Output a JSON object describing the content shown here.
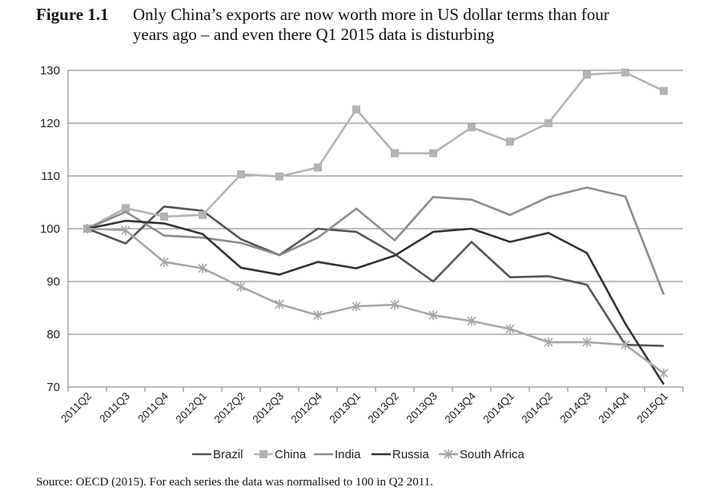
{
  "figure": {
    "number": "Figure 1.1",
    "title_line1": "Only China’s exports are now worth more in US dollar terms than four",
    "title_line2": "years ago – and even there Q1 2015 data is disturbing"
  },
  "source": "Source: OECD (2015). For each series the data was normalised to 100 in Q2 2011.",
  "chart_data": {
    "type": "line",
    "title": "",
    "xlabel": "",
    "ylabel": "",
    "ylim": [
      70,
      130
    ],
    "yticks": [
      70,
      80,
      90,
      100,
      110,
      120,
      130
    ],
    "grid": "horizontal",
    "legend_position": "bottom",
    "categories": [
      "2011Q2",
      "2011Q3",
      "2011Q4",
      "2012Q1",
      "2012Q2",
      "2012Q3",
      "2012Q4",
      "2013Q1",
      "2013Q2",
      "2013Q3",
      "2013Q4",
      "2014Q1",
      "2014Q2",
      "2014Q3",
      "2014Q4",
      "2015Q1"
    ],
    "series": [
      {
        "name": "Brazil",
        "color": "#555555",
        "marker": "none",
        "values": [
          100,
          97.2,
          104.2,
          103.4,
          98,
          95,
          100,
          99.4,
          95.2,
          90,
          97.5,
          90.8,
          91,
          89.4,
          78,
          77.8
        ]
      },
      {
        "name": "China",
        "color": "#b3b3b3",
        "marker": "square",
        "values": [
          100,
          103.9,
          102.3,
          102.6,
          110.3,
          109.9,
          111.6,
          122.6,
          114.3,
          114.3,
          119.2,
          116.5,
          120,
          129.2,
          129.6,
          126.1
        ]
      },
      {
        "name": "India",
        "color": "#8c8c8c",
        "marker": "none",
        "values": [
          100,
          103.2,
          98.7,
          98.3,
          97.3,
          95,
          98.3,
          103.8,
          97.8,
          106,
          105.5,
          102.6,
          106,
          107.8,
          106.1,
          87.5
        ]
      },
      {
        "name": "Russia",
        "color": "#333333",
        "marker": "none",
        "values": [
          100,
          101.5,
          101,
          99,
          92.6,
          91.3,
          93.7,
          92.5,
          94.9,
          99.4,
          100,
          97.5,
          99.2,
          95.4,
          82,
          70.5
        ]
      },
      {
        "name": "South Africa",
        "color": "#a6a6a6",
        "marker": "star",
        "values": [
          100,
          99.7,
          93.7,
          92.5,
          89,
          85.7,
          83.6,
          85.3,
          85.6,
          83.6,
          82.5,
          81,
          78.5,
          78.5,
          78,
          72.6
        ]
      }
    ]
  }
}
